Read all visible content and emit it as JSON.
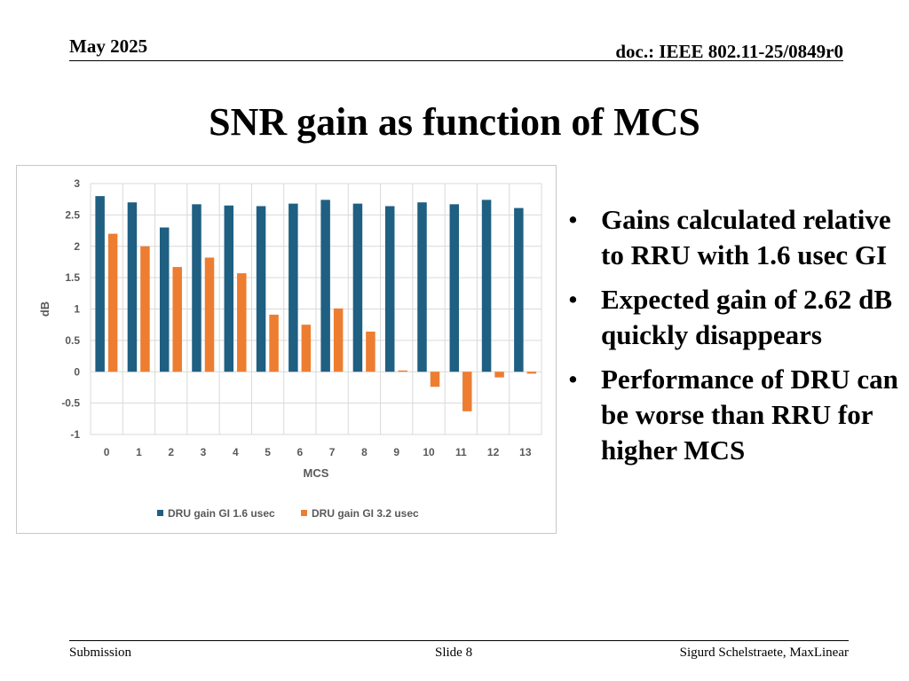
{
  "header": {
    "date": "May 2025",
    "doc": "doc.: IEEE 802.11-25/0849r0"
  },
  "title": "SNR gain as function of MCS",
  "bullets": [
    "Gains calculated relative to RRU with 1.6 usec GI",
    "Expected gain of 2.62 dB quickly disappears",
    "Performance of DRU can be worse than RRU for higher MCS"
  ],
  "bullet_symbol": "•",
  "footer": {
    "left": "Submission",
    "center": "Slide 8",
    "right": "Sigurd Schelstraete, MaxLinear"
  },
  "chart_data": {
    "type": "bar",
    "title": "",
    "xlabel": "MCS",
    "ylabel": "dB",
    "ylim": [
      -1,
      3
    ],
    "yticks": [
      3,
      2.5,
      2,
      1.5,
      1,
      0.5,
      0,
      -0.5,
      -1
    ],
    "ytick_labels": [
      "3",
      "2.5",
      "2",
      "1.5",
      "1",
      "0.5",
      "0",
      "-0.5",
      "-1"
    ],
    "grid": true,
    "legend_position": "bottom",
    "categories": [
      "0",
      "1",
      "2",
      "3",
      "4",
      "5",
      "6",
      "7",
      "8",
      "9",
      "10",
      "11",
      "12",
      "13"
    ],
    "series": [
      {
        "name": "DRU gain GI 1.6 usec",
        "color": "#1f5f82",
        "values": [
          2.8,
          2.7,
          2.3,
          2.67,
          2.65,
          2.64,
          2.68,
          2.74,
          2.68,
          2.64,
          2.7,
          2.67,
          2.74,
          2.61
        ]
      },
      {
        "name": "DRU gain GI 3.2 usec",
        "color": "#ed7d31",
        "values": [
          2.2,
          2.0,
          1.67,
          1.82,
          1.57,
          0.91,
          0.75,
          1.01,
          0.64,
          0.02,
          -0.24,
          -0.63,
          -0.09,
          -0.03
        ]
      }
    ]
  }
}
